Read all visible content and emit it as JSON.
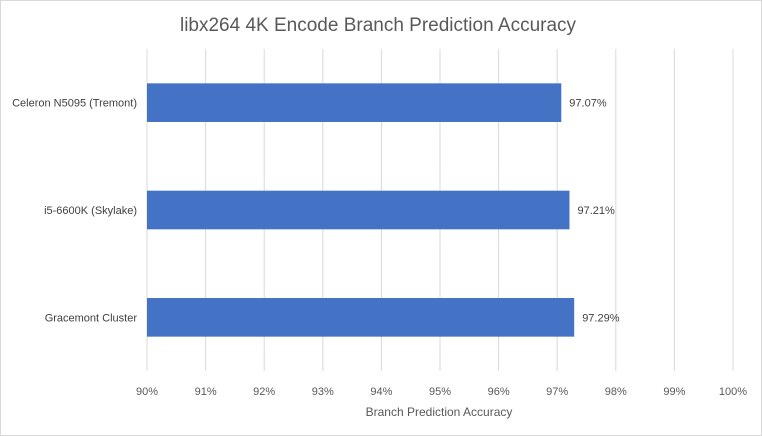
{
  "chart_data": {
    "type": "bar",
    "orientation": "horizontal",
    "title": "libx264 4K Encode Branch Prediction Accuracy",
    "xlabel": "Branch Prediction Accuracy",
    "ylabel": "",
    "categories": [
      "Celeron N5095 (Tremont)",
      "i5-6600K (Skylake)",
      "Gracemont Cluster"
    ],
    "series": [
      {
        "values": [
          97.07,
          97.21,
          97.29
        ],
        "labels": [
          "97.07%",
          "97.21%",
          "97.29%"
        ],
        "color": "#4472c4"
      }
    ],
    "xlim": [
      90,
      100
    ],
    "ticks": [
      90,
      91,
      92,
      93,
      94,
      95,
      96,
      97,
      98,
      99,
      100
    ],
    "tick_labels": [
      "90%",
      "91%",
      "92%",
      "93%",
      "94%",
      "95%",
      "96%",
      "97%",
      "98%",
      "99%",
      "100%"
    ],
    "grid": true,
    "gridline_color": "#d9d9d9",
    "legend": "none"
  }
}
